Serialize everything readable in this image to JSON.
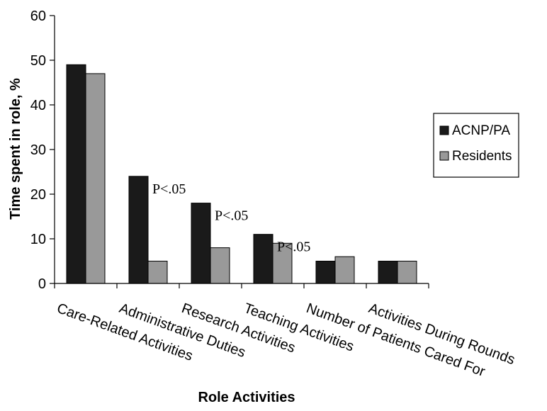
{
  "chart_data": {
    "type": "bar",
    "title": "",
    "xlabel": "Role Activities",
    "ylabel": "Time spent in role, %",
    "ylim": [
      0,
      60
    ],
    "yticks": [
      0,
      10,
      20,
      30,
      40,
      50,
      60
    ],
    "grid": false,
    "legend_position": "right",
    "categories": [
      "Care-Related Activities",
      "Administrative Duties",
      "Research Activities",
      "Teaching Activities",
      "Number of Patients Cared For",
      "Activities During Rounds"
    ],
    "series": [
      {
        "name": "ACNP/PA",
        "values": [
          49,
          24,
          18,
          11,
          5,
          5
        ]
      },
      {
        "name": "Residents",
        "values": [
          47,
          5,
          8,
          9,
          6,
          5
        ]
      }
    ],
    "annotations": [
      {
        "category_index": 1,
        "text": "P<.05"
      },
      {
        "category_index": 2,
        "text": "P<.05"
      },
      {
        "category_index": 3,
        "text": "P<.05"
      }
    ],
    "colors": {
      "ACNP/PA": "#1a1a1a",
      "Residents": "#999999"
    }
  }
}
